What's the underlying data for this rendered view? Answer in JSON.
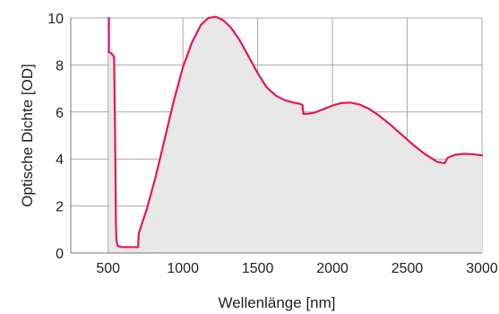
{
  "chart_data": {
    "type": "line",
    "title": "",
    "xlabel": "Wellenlänge [nm]",
    "ylabel": "Optische Dichte [OD]",
    "xlim": [
      250,
      3000
    ],
    "ylim": [
      0,
      10
    ],
    "grid": true,
    "x_ticks": [
      500,
      1000,
      1500,
      2000,
      2500,
      3000
    ],
    "y_ticks": [
      0,
      2,
      4,
      6,
      8,
      10
    ],
    "x_tick_labels": [
      "500",
      "1000",
      "1500",
      "2000",
      "2500",
      "3000"
    ],
    "y_tick_labels": [
      "0",
      "2",
      "4",
      "6",
      "8",
      "10"
    ],
    "series": [
      {
        "color": "#e8174f",
        "fill": "#e8e8e8",
        "x": [
          505,
          505,
          520,
          540,
          548,
          552,
          556,
          565,
          590,
          620,
          650,
          700,
          705,
          760,
          820,
          880,
          940,
          1000,
          1060,
          1120,
          1170,
          1220,
          1270,
          1320,
          1380,
          1440,
          1500,
          1560,
          1620,
          1680,
          1740,
          1780,
          1800,
          1805,
          1830,
          1880,
          1940,
          2000,
          2060,
          2120,
          2180,
          2240,
          2300,
          2380,
          2460,
          2540,
          2620,
          2700,
          2750,
          2770,
          2820,
          2880,
          2940,
          3000
        ],
        "y": [
          10,
          8.55,
          8.5,
          8.35,
          4.0,
          1.2,
          0.5,
          0.3,
          0.25,
          0.25,
          0.25,
          0.25,
          0.85,
          1.9,
          3.3,
          4.9,
          6.5,
          7.9,
          8.95,
          9.7,
          10.0,
          10.05,
          9.9,
          9.6,
          9.05,
          8.35,
          7.65,
          7.05,
          6.7,
          6.5,
          6.4,
          6.35,
          6.3,
          5.92,
          5.92,
          5.97,
          6.12,
          6.27,
          6.38,
          6.4,
          6.32,
          6.15,
          5.9,
          5.5,
          5.05,
          4.6,
          4.2,
          3.88,
          3.82,
          4.05,
          4.18,
          4.22,
          4.2,
          4.15
        ]
      }
    ]
  }
}
